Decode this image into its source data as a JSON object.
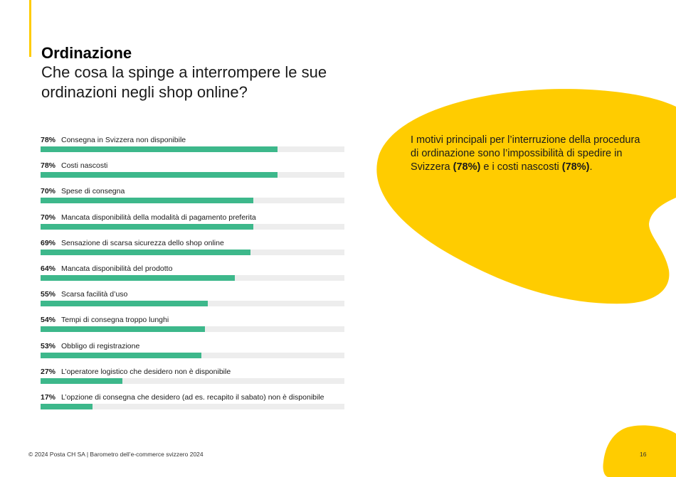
{
  "header": {
    "section_title": "Ordinazione",
    "question": "Che cosa la spinge a interrompere le sue ordinazioni negli shop online?"
  },
  "summary": {
    "text_part1": "I motivi principali per l’interruzione della procedura di ordinazione sono l’impossibilità di spedire in Svizzera ",
    "value1": "(78%)",
    "text_part2": " e i costi nascosti ",
    "value2": "(78%)",
    "text_part3": "."
  },
  "chart_data": {
    "type": "bar",
    "orientation": "horizontal",
    "xlim": [
      0,
      100
    ],
    "unit": "%",
    "categories": [
      "Consegna in Svizzera non disponibile",
      "Costi nascosti",
      "Spese di consegna",
      "Mancata disponibilità della modalità di pagamento preferita",
      "Sensazione di scarsa sicurezza dello shop online",
      "Mancata disponibilità del prodotto",
      "Scarsa facilità d’uso",
      "Tempi di consegna troppo lunghi",
      "Obbligo di registrazione",
      "L’operatore logistico che desidero non è disponibile",
      "L’opzione di consegna che desidero (ad es. recapito il sabato) non è disponibile"
    ],
    "values": [
      78,
      78,
      70,
      70,
      69,
      64,
      55,
      54,
      53,
      27,
      17
    ],
    "value_labels": [
      "78%",
      "78%",
      "70%",
      "70%",
      "69%",
      "64%",
      "55%",
      "54%",
      "53%",
      "27%",
      "17%"
    ],
    "bar_color": "#3DB88B",
    "track_color": "#EDEDED"
  },
  "footer": {
    "copyright": "© 2024 Posta CH SA | Barometro dell’e-commerce svizzero 2024",
    "page_number": "16"
  },
  "colors": {
    "accent_yellow": "#FFCC00",
    "bar_green": "#3DB88B"
  }
}
